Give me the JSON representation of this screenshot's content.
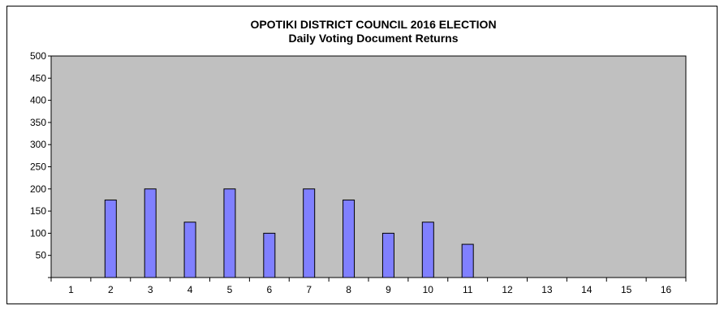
{
  "chart_data": {
    "type": "bar",
    "title": "OPOTIKI DISTRICT COUNCIL 2016 ELECTION",
    "subtitle": "Daily Voting Document Returns",
    "xlabel": "",
    "ylabel": "",
    "categories": [
      "1",
      "2",
      "3",
      "4",
      "5",
      "6",
      "7",
      "8",
      "9",
      "10",
      "11",
      "12",
      "13",
      "14",
      "15",
      "16"
    ],
    "values": [
      0,
      175,
      200,
      125,
      200,
      100,
      200,
      175,
      100,
      125,
      75,
      0,
      0,
      0,
      0,
      0
    ],
    "ylim": [
      0,
      500
    ],
    "yticks": [
      "",
      "50",
      "100",
      "150",
      "200",
      "250",
      "300",
      "350",
      "400",
      "450",
      "500"
    ],
    "grid": false,
    "legend": "none",
    "colors": {
      "bar_fill": "#8080ff",
      "bar_stroke": "#000000",
      "plot_background": "#c0c0c0",
      "frame_border": "#000000"
    }
  }
}
